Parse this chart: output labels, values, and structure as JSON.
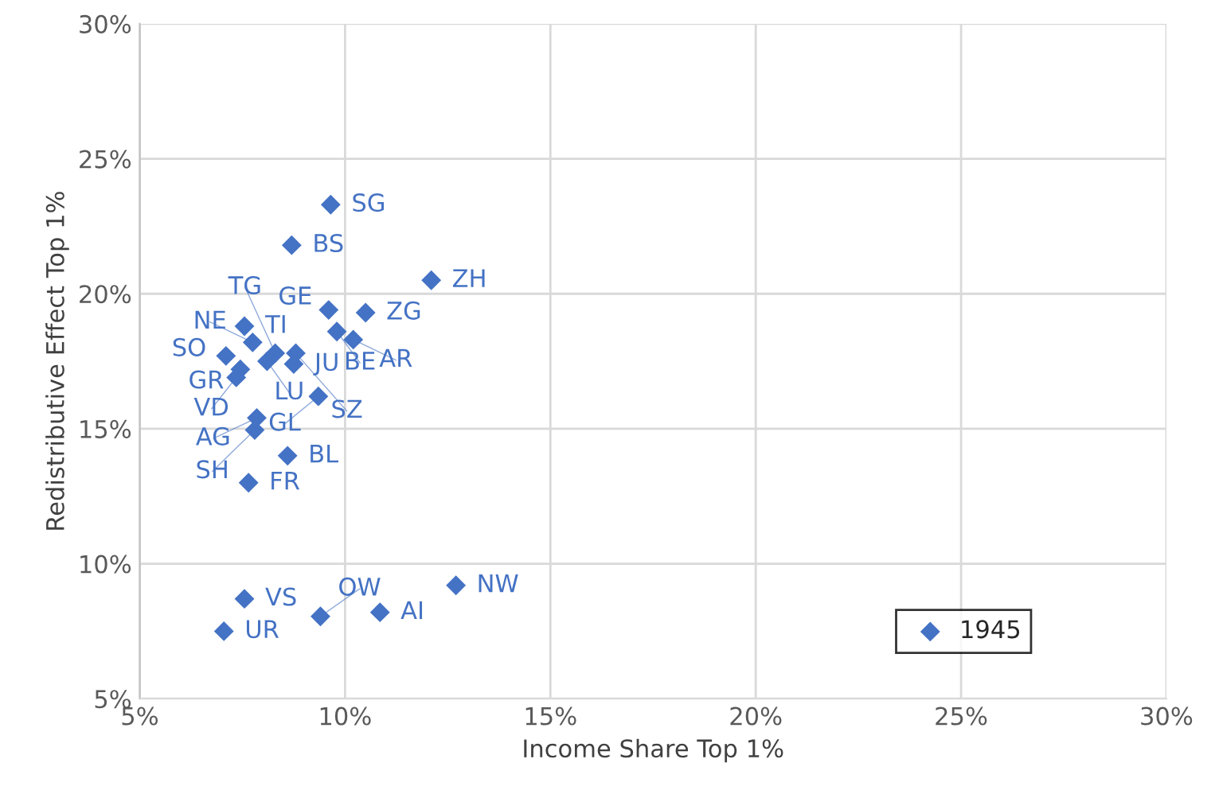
{
  "chart_data": {
    "type": "scatter",
    "xlabel": "Income Share Top 1%",
    "ylabel": "Redistributive Effect Top 1%",
    "xlim": [
      5,
      30
    ],
    "ylim": [
      5,
      30
    ],
    "xticks": [
      {
        "value": 5,
        "label": "5%"
      },
      {
        "value": 10,
        "label": "10%"
      },
      {
        "value": 15,
        "label": "15%"
      },
      {
        "value": 20,
        "label": "20%"
      },
      {
        "value": 25,
        "label": "25%"
      },
      {
        "value": 30,
        "label": "30%"
      }
    ],
    "yticks": [
      {
        "value": 5,
        "label": "5%"
      },
      {
        "value": 10,
        "label": "10%"
      },
      {
        "value": 15,
        "label": "15%"
      },
      {
        "value": 20,
        "label": "20%"
      },
      {
        "value": 25,
        "label": "25%"
      },
      {
        "value": 30,
        "label": "30%"
      }
    ],
    "grid": true,
    "legend": "bottom right",
    "marker": "diamond",
    "series": [
      {
        "name": "1945",
        "color": "#4472c4",
        "x": [
          9.65,
          8.7,
          12.1,
          9.6,
          10.5,
          7.55,
          9.8,
          10.2,
          7.75,
          7.1,
          8.1,
          8.8,
          8.3,
          7.45,
          8.75,
          7.35,
          9.35,
          7.85,
          7.8,
          8.6,
          7.65,
          7.55,
          7.05,
          9.4,
          10.85,
          12.7
        ],
        "values": [
          23.3,
          21.8,
          20.5,
          19.4,
          19.3,
          18.8,
          18.6,
          18.3,
          18.2,
          17.7,
          17.5,
          17.8,
          17.8,
          17.2,
          17.4,
          16.9,
          16.2,
          15.4,
          14.95,
          14.0,
          13.0,
          8.7,
          7.5,
          8.05,
          8.2,
          9.2
        ]
      }
    ],
    "annotations": [
      {
        "text": "SG",
        "x": 9.65,
        "y": 23.3
      },
      {
        "text": "BS",
        "x": 8.7,
        "y": 21.8
      },
      {
        "text": "ZH",
        "x": 12.1,
        "y": 20.5
      },
      {
        "text": "GE",
        "x": 9.6,
        "y": 19.4
      },
      {
        "text": "ZG",
        "x": 10.5,
        "y": 19.3
      },
      {
        "text": "TI",
        "x": 7.55,
        "y": 18.8
      },
      {
        "text": "BE",
        "x": 9.8,
        "y": 18.6
      },
      {
        "text": "AR",
        "x": 10.2,
        "y": 18.3
      },
      {
        "text": "NE",
        "x": 7.75,
        "y": 18.2
      },
      {
        "text": "SO",
        "x": 7.1,
        "y": 17.7
      },
      {
        "text": "LU",
        "x": 8.1,
        "y": 17.5
      },
      {
        "text": "SZ",
        "x": 8.8,
        "y": 17.8
      },
      {
        "text": "TG",
        "x": 8.3,
        "y": 17.8
      },
      {
        "text": "GR",
        "x": 7.45,
        "y": 17.2
      },
      {
        "text": "JU",
        "x": 8.75,
        "y": 17.4
      },
      {
        "text": "VD",
        "x": 7.35,
        "y": 16.9
      },
      {
        "text": "GL",
        "x": 9.35,
        "y": 16.2
      },
      {
        "text": "AG",
        "x": 7.85,
        "y": 15.4
      },
      {
        "text": "SH",
        "x": 7.8,
        "y": 14.95
      },
      {
        "text": "BL",
        "x": 8.6,
        "y": 14.0
      },
      {
        "text": "FR",
        "x": 7.65,
        "y": 13.0
      },
      {
        "text": "VS",
        "x": 7.55,
        "y": 8.7
      },
      {
        "text": "UR",
        "x": 7.05,
        "y": 7.5
      },
      {
        "text": "OW",
        "x": 9.4,
        "y": 8.05
      },
      {
        "text": "AI",
        "x": 10.85,
        "y": 8.2
      },
      {
        "text": "NW",
        "x": 12.7,
        "y": 9.2
      }
    ]
  }
}
